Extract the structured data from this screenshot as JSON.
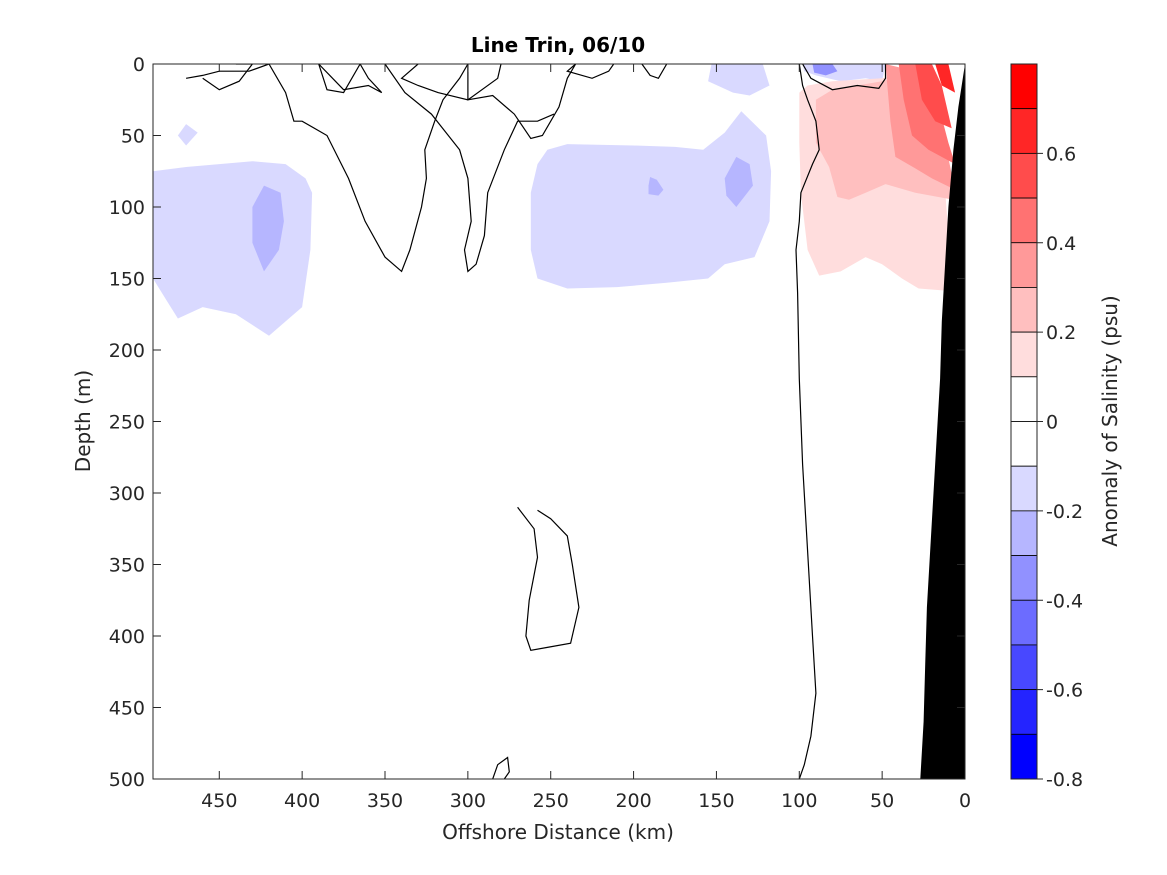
{
  "chart_data": {
    "type": "heatmap",
    "title": "Line Trin, 06/10",
    "xlabel": "Offshore Distance (km)",
    "ylabel": "Depth (m)",
    "colorbar_label": "Anomaly of Salinity (psu)",
    "xlim": [
      490,
      0
    ],
    "ylim": [
      500,
      0
    ],
    "x_ticks": [
      450,
      400,
      350,
      300,
      250,
      200,
      150,
      100,
      50,
      0
    ],
    "y_ticks": [
      0,
      50,
      100,
      150,
      200,
      250,
      300,
      350,
      400,
      450,
      500
    ],
    "colorbar_ticks": [
      0.6,
      0.4,
      0.2,
      0,
      -0.2,
      -0.4,
      -0.6,
      -0.8
    ],
    "colorbar_range": [
      -0.8,
      0.8
    ],
    "colorbar_levels": [
      {
        "low": 0.7,
        "high": 0.8,
        "color": "#ff0000"
      },
      {
        "low": 0.6,
        "high": 0.7,
        "color": "#ff2626"
      },
      {
        "low": 0.5,
        "high": 0.6,
        "color": "#ff4c4c"
      },
      {
        "low": 0.4,
        "high": 0.5,
        "color": "#ff7272"
      },
      {
        "low": 0.3,
        "high": 0.4,
        "color": "#ff9999"
      },
      {
        "low": 0.2,
        "high": 0.3,
        "color": "#ffbfbf"
      },
      {
        "low": 0.1,
        "high": 0.2,
        "color": "#ffdddd"
      },
      {
        "low": 0.0,
        "high": 0.1,
        "color": "#ffffff"
      },
      {
        "low": -0.1,
        "high": 0.0,
        "color": "#ffffff"
      },
      {
        "low": -0.2,
        "high": -0.1,
        "color": "#d9d9ff"
      },
      {
        "low": -0.3,
        "high": -0.2,
        "color": "#b6b6ff"
      },
      {
        "low": -0.4,
        "high": -0.3,
        "color": "#9191ff"
      },
      {
        "low": -0.5,
        "high": -0.4,
        "color": "#6c6cff"
      },
      {
        "low": -0.6,
        "high": -0.5,
        "color": "#4848ff"
      },
      {
        "low": -0.7,
        "high": -0.6,
        "color": "#2424ff"
      },
      {
        "low": -0.8,
        "high": -0.7,
        "color": "#0000ff"
      }
    ],
    "regions": [
      {
        "name": "region-fresh-west",
        "color": "#d9d9ff",
        "points": [
          [
            490,
            75
          ],
          [
            470,
            72
          ],
          [
            430,
            68
          ],
          [
            410,
            70
          ],
          [
            398,
            80
          ],
          [
            394,
            90
          ],
          [
            395,
            130
          ],
          [
            400,
            170
          ],
          [
            410,
            180
          ],
          [
            420,
            190
          ],
          [
            440,
            175
          ],
          [
            460,
            170
          ],
          [
            475,
            178
          ],
          [
            482,
            165
          ],
          [
            490,
            150
          ]
        ]
      },
      {
        "name": "region-fresh-west-core",
        "color": "#b6b6ff",
        "points": [
          [
            430,
            100
          ],
          [
            423,
            85
          ],
          [
            413,
            90
          ],
          [
            411,
            110
          ],
          [
            414,
            130
          ],
          [
            423,
            145
          ],
          [
            430,
            125
          ]
        ]
      },
      {
        "name": "region-fresh-small-patch",
        "color": "#d9d9ff",
        "points": [
          [
            475,
            50
          ],
          [
            470,
            42
          ],
          [
            463,
            48
          ],
          [
            470,
            57
          ]
        ]
      },
      {
        "name": "region-fresh-central",
        "color": "#d9d9ff",
        "points": [
          [
            252,
            60
          ],
          [
            240,
            56
          ],
          [
            200,
            57
          ],
          [
            175,
            58
          ],
          [
            158,
            60
          ],
          [
            145,
            48
          ],
          [
            135,
            33
          ],
          [
            120,
            50
          ],
          [
            117,
            75
          ],
          [
            118,
            110
          ],
          [
            127,
            135
          ],
          [
            145,
            140
          ],
          [
            155,
            150
          ],
          [
            180,
            153
          ],
          [
            210,
            156
          ],
          [
            240,
            157
          ],
          [
            258,
            150
          ],
          [
            262,
            130
          ],
          [
            262,
            90
          ],
          [
            258,
            70
          ]
        ]
      },
      {
        "name": "region-fresh-central-core-a",
        "color": "#b6b6ff",
        "points": [
          [
            145,
            80
          ],
          [
            138,
            65
          ],
          [
            130,
            70
          ],
          [
            128,
            85
          ],
          [
            138,
            100
          ],
          [
            144,
            92
          ]
        ]
      },
      {
        "name": "region-fresh-central-core-b",
        "color": "#b6b6ff",
        "points": [
          [
            191,
            85
          ],
          [
            190,
            79
          ],
          [
            186,
            81
          ],
          [
            182,
            88
          ],
          [
            185,
            92
          ],
          [
            191,
            91
          ]
        ]
      },
      {
        "name": "region-fresh-top-a",
        "color": "#d9d9ff",
        "points": [
          [
            153,
            0
          ],
          [
            122,
            0
          ],
          [
            118,
            15
          ],
          [
            130,
            22
          ],
          [
            140,
            20
          ],
          [
            155,
            12
          ]
        ]
      },
      {
        "name": "region-fresh-top-b",
        "color": "#d9d9ff",
        "points": [
          [
            98,
            0
          ],
          [
            48,
            0
          ],
          [
            50,
            12
          ],
          [
            60,
            10
          ],
          [
            75,
            12
          ],
          [
            90,
            8
          ],
          [
            97,
            5
          ]
        ]
      },
      {
        "name": "region-fresh-top-core",
        "color": "#9191ff",
        "points": [
          [
            92,
            0
          ],
          [
            80,
            0
          ],
          [
            77,
            5
          ],
          [
            84,
            8
          ],
          [
            91,
            6
          ]
        ]
      },
      {
        "name": "region-salty-1",
        "color": "#ffdddd",
        "points": [
          [
            100,
            20
          ],
          [
            95,
            15
          ],
          [
            80,
            12
          ],
          [
            50,
            10
          ],
          [
            30,
            5
          ],
          [
            20,
            20
          ],
          [
            14,
            55
          ],
          [
            10,
            120
          ],
          [
            6,
            159
          ],
          [
            28,
            157
          ],
          [
            38,
            150
          ],
          [
            50,
            140
          ],
          [
            60,
            135
          ],
          [
            75,
            145
          ],
          [
            88,
            148
          ],
          [
            95,
            130
          ],
          [
            99,
            90
          ],
          [
            100,
            55
          ]
        ]
      },
      {
        "name": "region-salty-2",
        "color": "#ffbfbf",
        "points": [
          [
            90,
            25
          ],
          [
            80,
            18
          ],
          [
            50,
            12
          ],
          [
            30,
            5
          ],
          [
            20,
            20
          ],
          [
            12,
            55
          ],
          [
            7,
            95
          ],
          [
            30,
            90
          ],
          [
            48,
            84
          ],
          [
            60,
            90
          ],
          [
            70,
            95
          ],
          [
            77,
            93
          ],
          [
            82,
            72
          ],
          [
            90,
            55
          ]
        ]
      },
      {
        "name": "region-salty-3",
        "color": "#ff9999",
        "points": [
          [
            48,
            0
          ],
          [
            30,
            5
          ],
          [
            20,
            20
          ],
          [
            12,
            55
          ],
          [
            6,
            88
          ],
          [
            20,
            80
          ],
          [
            30,
            73
          ],
          [
            42,
            65
          ],
          [
            45,
            40
          ]
        ]
      },
      {
        "name": "region-salty-4",
        "color": "#ff7272",
        "points": [
          [
            40,
            0
          ],
          [
            28,
            0
          ],
          [
            18,
            20
          ],
          [
            10,
            55
          ],
          [
            6,
            70
          ],
          [
            22,
            60
          ],
          [
            32,
            50
          ],
          [
            37,
            25
          ]
        ]
      },
      {
        "name": "region-salty-5",
        "color": "#ff4c4c",
        "points": [
          [
            30,
            0
          ],
          [
            20,
            0
          ],
          [
            14,
            15
          ],
          [
            8,
            45
          ],
          [
            18,
            40
          ],
          [
            26,
            25
          ]
        ]
      },
      {
        "name": "region-salty-6",
        "color": "#ff2626",
        "points": [
          [
            18,
            0
          ],
          [
            10,
            0
          ],
          [
            6,
            20
          ],
          [
            14,
            15
          ]
        ]
      }
    ],
    "contours_zero": [
      [
        [
          365,
          0
        ],
        [
          375,
          20
        ],
        [
          385,
          18
        ],
        [
          390,
          0
        ]
      ],
      [
        [
          300,
          0
        ],
        [
          300,
          25
        ],
        [
          285,
          22
        ],
        [
          272,
          35
        ],
        [
          262,
          52
        ],
        [
          255,
          50
        ],
        [
          245,
          30
        ],
        [
          240,
          10
        ],
        [
          235,
          0
        ]
      ],
      [
        [
          235,
          0
        ],
        [
          240,
          5
        ],
        [
          225,
          10
        ],
        [
          215,
          5
        ],
        [
          212,
          0
        ]
      ],
      [
        [
          180,
          0
        ],
        [
          185,
          10
        ],
        [
          190,
          8
        ],
        [
          195,
          0
        ]
      ],
      [
        [
          100,
          0
        ],
        [
          98,
          15
        ],
        [
          95,
          25
        ],
        [
          90,
          40
        ],
        [
          88,
          60
        ],
        [
          92,
          70
        ],
        [
          99,
          90
        ],
        [
          100,
          110
        ],
        [
          102,
          130
        ],
        [
          101,
          160
        ],
        [
          100,
          220
        ],
        [
          98,
          280
        ],
        [
          96,
          320
        ],
        [
          94,
          360
        ],
        [
          92,
          400
        ],
        [
          90,
          440
        ],
        [
          93,
          470
        ],
        [
          97,
          490
        ],
        [
          100,
          500
        ]
      ],
      [
        [
          98,
          0
        ],
        [
          93,
          10
        ],
        [
          80,
          18
        ],
        [
          65,
          15
        ],
        [
          52,
          17
        ],
        [
          48,
          10
        ],
        [
          48,
          0
        ]
      ],
      [
        [
          330,
          0
        ],
        [
          340,
          10
        ],
        [
          330,
          15
        ],
        [
          318,
          20
        ],
        [
          300,
          25
        ],
        [
          282,
          10
        ],
        [
          280,
          0
        ]
      ],
      [
        [
          270,
          310
        ],
        [
          260,
          325
        ],
        [
          258,
          345
        ],
        [
          263,
          375
        ],
        [
          265,
          400
        ],
        [
          262,
          410
        ],
        [
          252,
          408
        ],
        [
          238,
          405
        ],
        [
          233,
          380
        ],
        [
          237,
          350
        ],
        [
          240,
          330
        ],
        [
          250,
          318
        ],
        [
          258,
          312
        ]
      ],
      [
        [
          285,
          500
        ],
        [
          282,
          490
        ],
        [
          276,
          485
        ],
        [
          275,
          495
        ],
        [
          278,
          500
        ]
      ]
    ],
    "contour_extra": [
      [
        [
          440,
          0
        ],
        [
          430,
          0
        ],
        [
          438,
          12
        ],
        [
          450,
          18
        ],
        [
          460,
          10
        ]
      ],
      [
        [
          420,
          0
        ],
        [
          432,
          5
        ],
        [
          450,
          5
        ],
        [
          460,
          8
        ],
        [
          470,
          10
        ]
      ],
      [
        [
          390,
          0
        ],
        [
          375,
          18
        ],
        [
          360,
          15
        ],
        [
          352,
          20
        ],
        [
          360,
          10
        ],
        [
          365,
          0
        ]
      ],
      [
        [
          350,
          0
        ],
        [
          338,
          20
        ],
        [
          322,
          35
        ],
        [
          305,
          60
        ],
        [
          300,
          80
        ],
        [
          298,
          110
        ],
        [
          302,
          130
        ],
        [
          300,
          145
        ],
        [
          295,
          140
        ],
        [
          290,
          120
        ],
        [
          288,
          90
        ],
        [
          278,
          60
        ],
        [
          270,
          40
        ],
        [
          258,
          40
        ],
        [
          248,
          35
        ]
      ],
      [
        [
          420,
          0
        ],
        [
          410,
          20
        ],
        [
          405,
          40
        ],
        [
          400,
          40
        ],
        [
          385,
          50
        ],
        [
          372,
          80
        ],
        [
          362,
          110
        ],
        [
          350,
          135
        ],
        [
          340,
          145
        ],
        [
          335,
          130
        ],
        [
          328,
          100
        ],
        [
          325,
          80
        ],
        [
          326,
          60
        ],
        [
          320,
          40
        ],
        [
          315,
          25
        ],
        [
          305,
          10
        ],
        [
          300,
          0
        ]
      ]
    ],
    "land_mask": {
      "color": "#000000",
      "points": [
        [
          0,
          0
        ],
        [
          2,
          15
        ],
        [
          4,
          30
        ],
        [
          7,
          60
        ],
        [
          10,
          100
        ],
        [
          12,
          140
        ],
        [
          14,
          180
        ],
        [
          15,
          220
        ],
        [
          17,
          260
        ],
        [
          19,
          300
        ],
        [
          21,
          340
        ],
        [
          23,
          380
        ],
        [
          24,
          420
        ],
        [
          25,
          460
        ],
        [
          27,
          500
        ],
        [
          0,
          500
        ]
      ]
    }
  }
}
